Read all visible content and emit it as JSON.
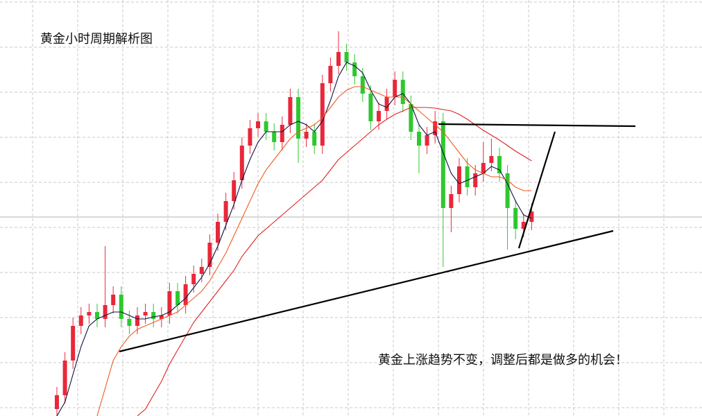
{
  "chart_data": {
    "type": "candlestick",
    "title": "黄金小时周期解析图",
    "annotation": "黄金上涨趋势不变，调整后都是做多的机会！",
    "ylim": [
      0,
      600
    ],
    "up_color": "#e8283a",
    "down_color": "#2ec82e",
    "open": [
      10,
      30,
      80,
      130,
      145,
      150,
      140,
      160,
      175,
      140,
      130,
      145,
      150,
      140,
      145,
      180,
      160,
      190,
      205,
      215,
      250,
      280,
      310,
      340,
      390,
      415,
      425,
      410,
      395,
      420,
      460,
      400,
      410,
      390,
      480,
      505,
      525,
      510,
      490,
      465,
      425,
      440,
      460,
      485,
      450,
      410,
      390,
      405,
      425,
      300,
      320,
      360,
      330,
      350,
      365,
      375,
      350,
      300,
      270,
      280
    ],
    "high": [
      42,
      92,
      142,
      157,
      162,
      162,
      245,
      187,
      187,
      152,
      157,
      162,
      162,
      157,
      192,
      192,
      202,
      217,
      227,
      262,
      292,
      322,
      352,
      402,
      427,
      437,
      437,
      422,
      432,
      472,
      472,
      422,
      422,
      492,
      517,
      555,
      537,
      522,
      502,
      477,
      452,
      472,
      497,
      497,
      462,
      422,
      417,
      440,
      437,
      332,
      372,
      372,
      362,
      395,
      400,
      387,
      362,
      312,
      292,
      307
    ],
    "low": [
      0,
      18,
      68,
      118,
      133,
      128,
      128,
      148,
      128,
      118,
      118,
      133,
      128,
      128,
      133,
      148,
      148,
      178,
      193,
      203,
      238,
      268,
      298,
      328,
      378,
      403,
      398,
      383,
      383,
      408,
      365,
      388,
      378,
      378,
      468,
      493,
      498,
      478,
      453,
      413,
      413,
      428,
      448,
      438,
      398,
      350,
      378,
      393,
      215,
      265,
      308,
      318,
      318,
      338,
      353,
      338,
      240,
      255,
      258,
      268
    ],
    "close": [
      30,
      80,
      130,
      145,
      150,
      140,
      160,
      175,
      140,
      130,
      145,
      150,
      140,
      145,
      180,
      160,
      190,
      205,
      215,
      250,
      280,
      310,
      340,
      390,
      415,
      425,
      410,
      395,
      420,
      460,
      400,
      410,
      390,
      480,
      505,
      525,
      510,
      490,
      465,
      425,
      440,
      460,
      485,
      450,
      410,
      390,
      405,
      425,
      300,
      320,
      360,
      330,
      350,
      365,
      375,
      350,
      300,
      270,
      280,
      295
    ],
    "series": [
      {
        "color": "#101040",
        "values": [
          0,
          20,
          60,
          100,
          130,
          140,
          145,
          150,
          150,
          145,
          140,
          140,
          143,
          145,
          150,
          160,
          170,
          185,
          200,
          220,
          245,
          275,
          305,
          340,
          370,
          395,
          410,
          410,
          410,
          420,
          425,
          420,
          410,
          425,
          455,
          490,
          510,
          505,
          495,
          470,
          450,
          445,
          460,
          465,
          450,
          420,
          405,
          410,
          380,
          350,
          335,
          340,
          345,
          350,
          360,
          355,
          335,
          310,
          290,
          285
        ]
      },
      {
        "color": "#f05a1e",
        "values": [
          null,
          null,
          null,
          null,
          null,
          0,
          40,
          80,
          100,
          115,
          125,
          130,
          135,
          140,
          145,
          150,
          160,
          170,
          180,
          195,
          215,
          235,
          260,
          285,
          310,
          335,
          355,
          370,
          385,
          400,
          410,
          415,
          420,
          430,
          445,
          460,
          470,
          475,
          475,
          470,
          465,
          460,
          460,
          460,
          450,
          440,
          430,
          420,
          410,
          395,
          380,
          365,
          355,
          350,
          345,
          345,
          340,
          330,
          325,
          325
        ]
      },
      {
        "color": "#e02020",
        "values": [
          null,
          null,
          null,
          null,
          null,
          null,
          null,
          null,
          null,
          null,
          0,
          10,
          30,
          50,
          75,
          95,
          115,
          135,
          150,
          165,
          180,
          195,
          210,
          230,
          245,
          260,
          270,
          280,
          290,
          300,
          310,
          320,
          330,
          340,
          355,
          370,
          380,
          390,
          400,
          410,
          420,
          428,
          435,
          440,
          445,
          445,
          445,
          444,
          442,
          440,
          435,
          428,
          420,
          412,
          405,
          398,
          390,
          382,
          375,
          368
        ]
      }
    ]
  }
}
